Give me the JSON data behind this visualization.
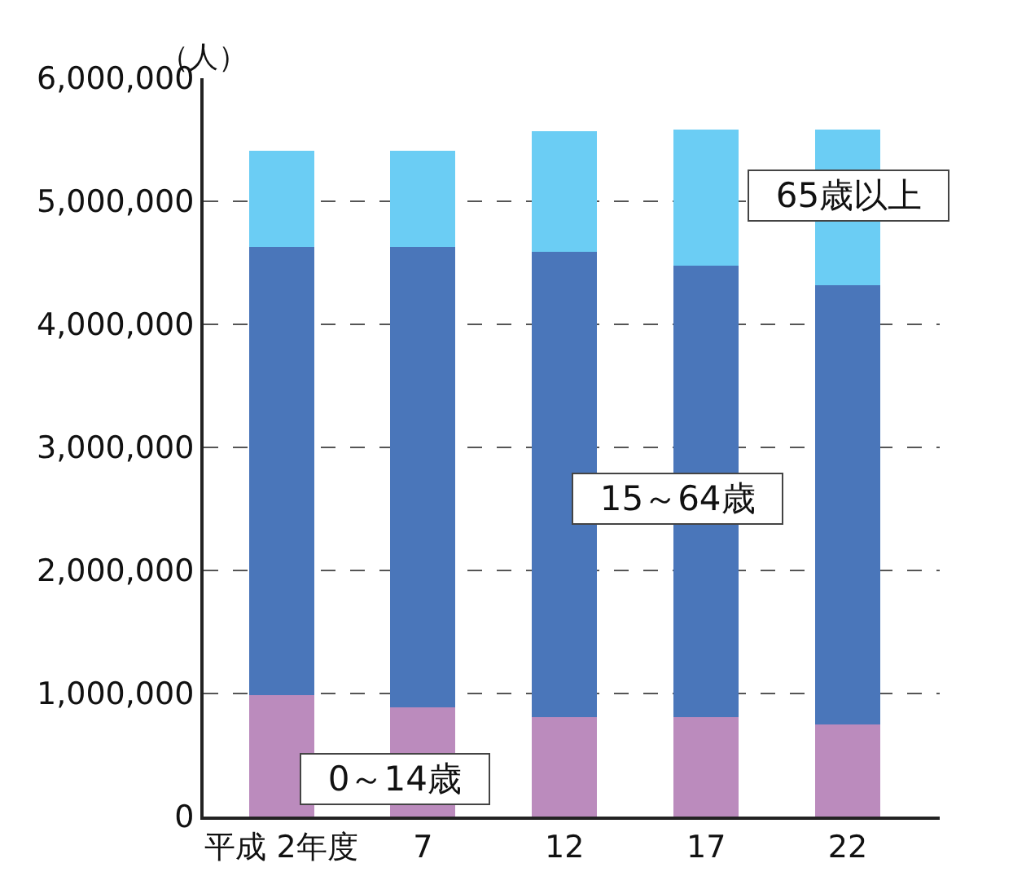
{
  "chart_data": {
    "type": "bar",
    "stacked": true,
    "ylabel": "（人）",
    "categories": [
      "平成 2年度",
      "7",
      "12",
      "17",
      "22"
    ],
    "series": [
      {
        "name": "0～14歳",
        "color": "#bb8bbd",
        "values": [
          990000,
          890000,
          810000,
          810000,
          750000
        ]
      },
      {
        "name": "15～64歳",
        "color": "#4a76ba",
        "values": [
          3640000,
          3740000,
          3780000,
          3670000,
          3570000
        ]
      },
      {
        "name": "65歳以上",
        "color": "#6bcdf4",
        "values": [
          780000,
          780000,
          980000,
          1100000,
          1260000
        ]
      }
    ],
    "ylim": [
      0,
      6000000
    ],
    "yticks": [
      {
        "value": 0,
        "label": "0"
      },
      {
        "value": 1000000,
        "label": "1,000,000"
      },
      {
        "value": 2000000,
        "label": "2,000,000"
      },
      {
        "value": 3000000,
        "label": "3,000,000"
      },
      {
        "value": 4000000,
        "label": "4,000,000"
      },
      {
        "value": 5000000,
        "label": "5,000,000"
      },
      {
        "value": 6000000,
        "label": "6,000,000"
      }
    ],
    "grid": "y",
    "legend": false
  }
}
